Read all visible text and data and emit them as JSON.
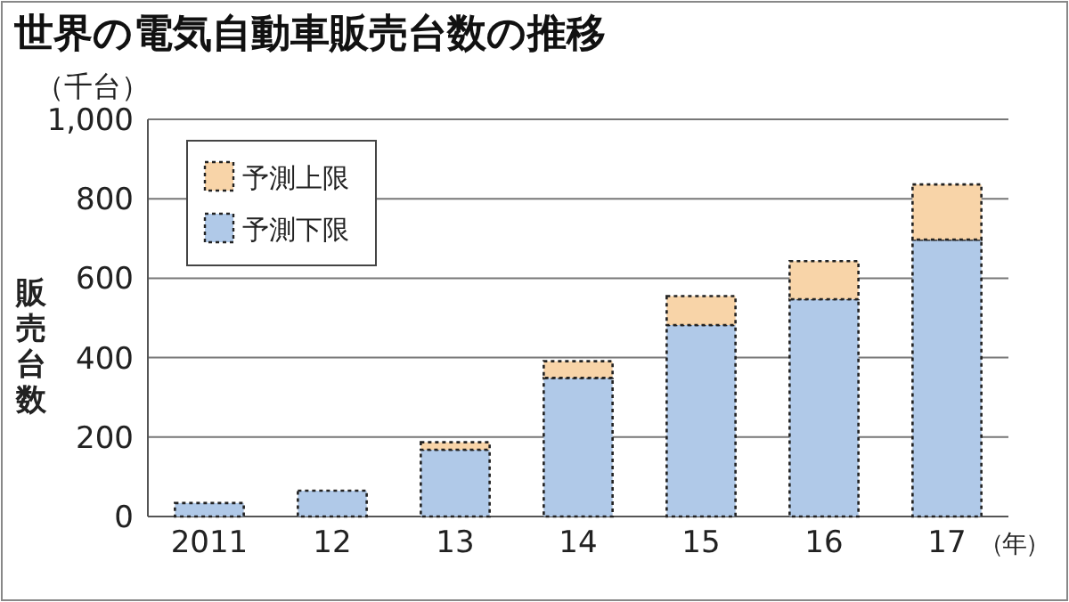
{
  "chart_data": {
    "type": "bar",
    "title": "世界の電気自動車販売台数の推移",
    "ylabel": "販売台数",
    "xlabel": "（年）",
    "annotations": [
      "（千台）"
    ],
    "categories": [
      "2011",
      "12",
      "13",
      "14",
      "15",
      "16",
      "17"
    ],
    "stacked": true,
    "series": [
      {
        "name": "予測下限",
        "color": "#b0c9e8",
        "values": [
          34,
          65,
          168,
          349,
          482,
          547,
          697
        ]
      },
      {
        "name": "予測上限",
        "color": "#f8d4a8",
        "values": [
          null,
          null,
          19,
          42,
          73,
          96,
          139
        ]
      }
    ],
    "ylim": [
      0,
      1000
    ],
    "yticks": [
      0,
      200,
      400,
      600,
      800,
      {
        "value": 1000,
        "label": "1,000"
      }
    ],
    "grid": "y",
    "legend": "top left"
  }
}
